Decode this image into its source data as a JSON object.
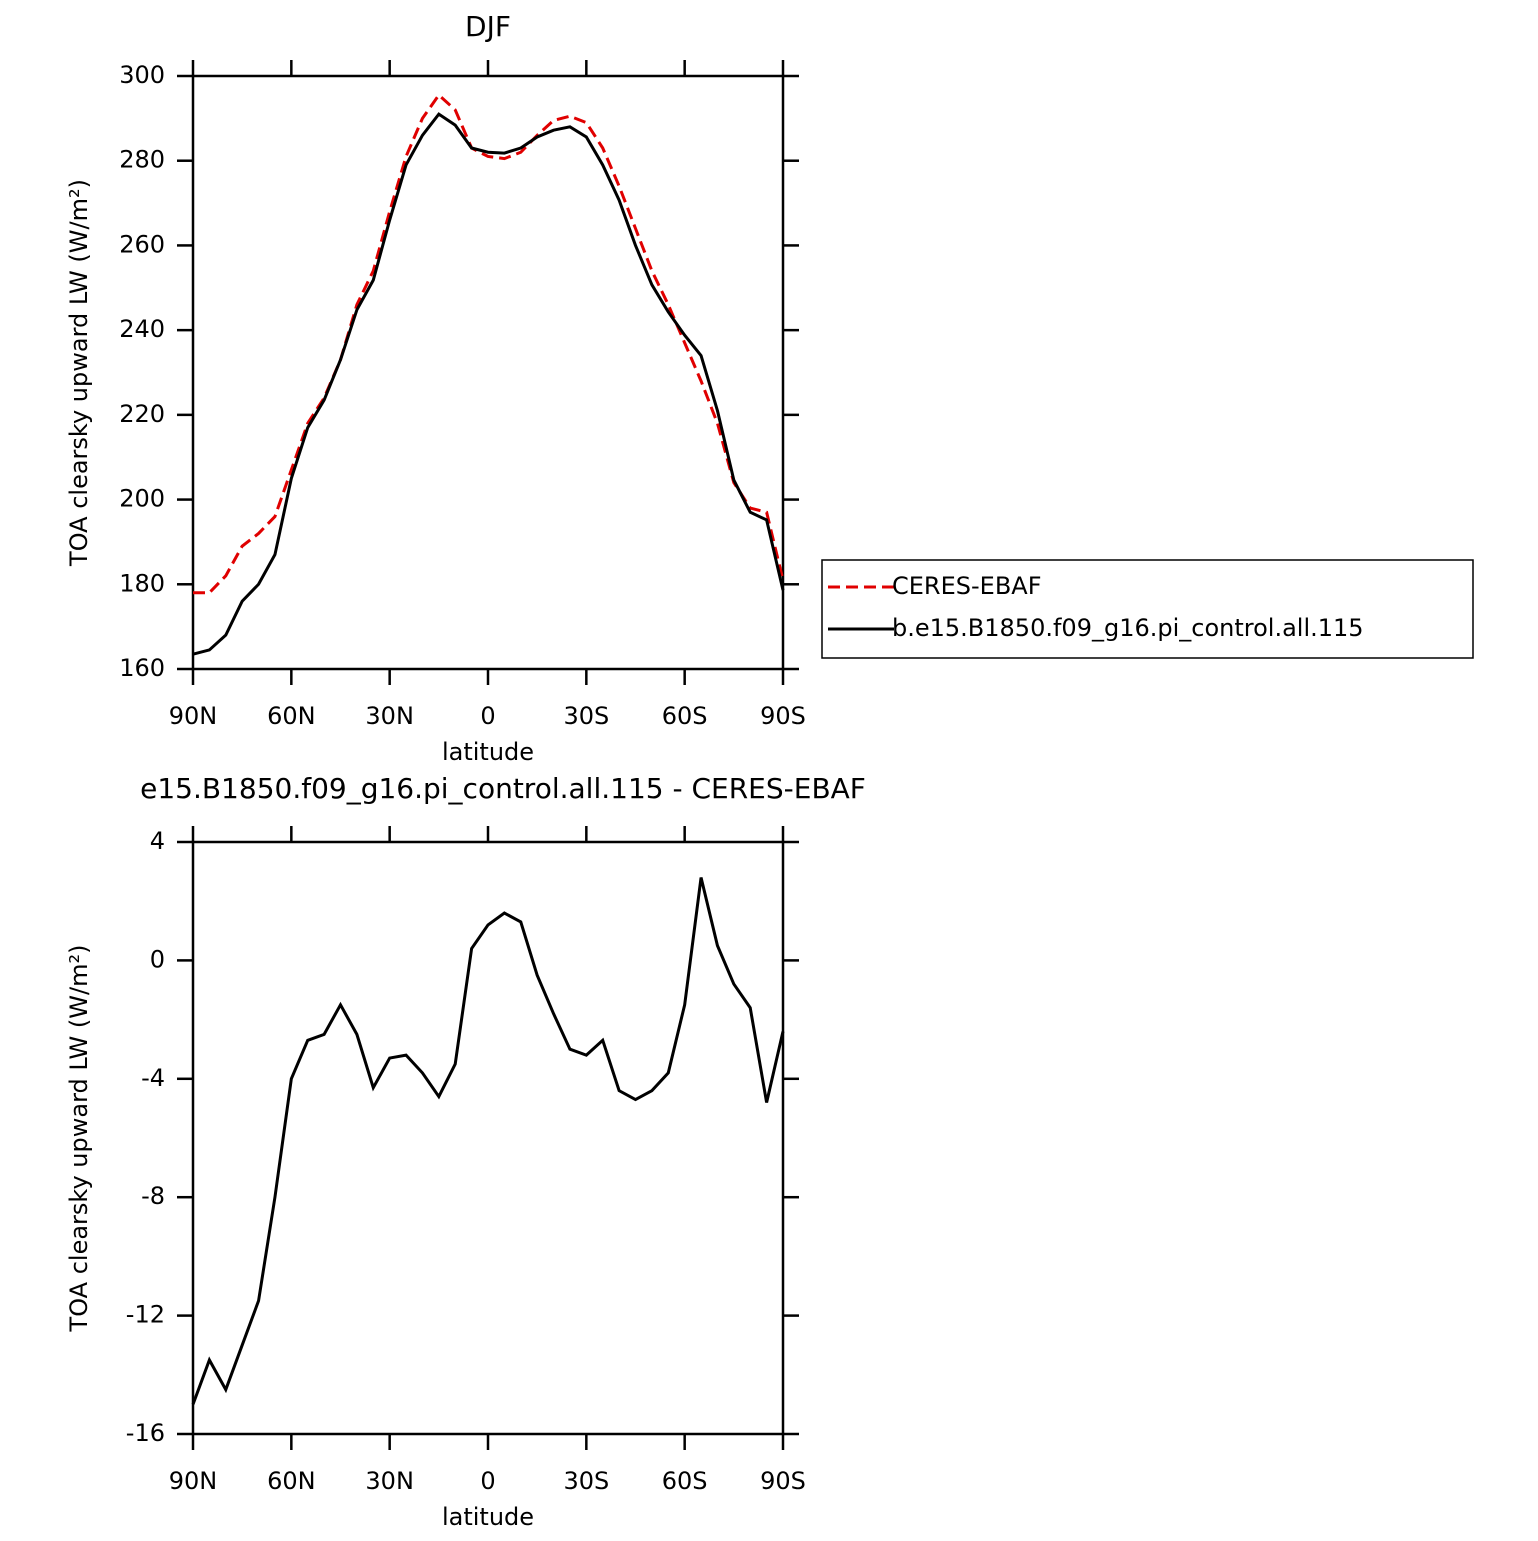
{
  "chart_data": [
    {
      "type": "line",
      "title": "DJF",
      "xlabel": "latitude",
      "ylabel": "TOA clearsky upward LW (W/m²)",
      "x": [
        90,
        85,
        80,
        75,
        70,
        65,
        60,
        55,
        50,
        45,
        40,
        35,
        30,
        25,
        20,
        15,
        10,
        5,
        0,
        -5,
        -10,
        -15,
        -20,
        -25,
        -30,
        -35,
        -40,
        -45,
        -50,
        -55,
        -60,
        -65,
        -70,
        -75,
        -80,
        -85,
        -90
      ],
      "series": [
        {
          "name": "CERES-EBAF",
          "color": "#e00000",
          "dashed": true,
          "values": [
            178,
            178,
            182,
            189,
            192,
            196,
            207,
            218,
            224,
            233,
            246,
            254,
            268,
            281,
            290,
            295.5,
            292,
            283,
            281,
            280.5,
            282,
            286,
            289.5,
            290.5,
            289,
            283,
            274,
            264,
            254,
            246,
            237,
            228,
            218,
            204,
            198,
            197,
            181
          ]
        },
        {
          "name": "b.e15.B1850.f09_g16.pi_control.all.115",
          "color": "#000000",
          "dashed": false,
          "values": [
            163.5,
            164.5,
            168,
            176,
            180,
            187,
            205,
            217,
            223.5,
            233,
            244.8,
            251.8,
            266,
            279,
            286,
            291,
            288.4,
            283,
            282,
            281.8,
            283,
            285.6,
            287.2,
            288,
            285.6,
            279,
            270.7,
            260,
            250.7,
            244.3,
            238.8,
            234,
            221,
            204.6,
            197,
            195.2,
            178.6
          ]
        }
      ],
      "xlim": [
        90,
        -90
      ],
      "xticks": [
        {
          "value": 90,
          "label": "90N"
        },
        {
          "value": 60,
          "label": "60N"
        },
        {
          "value": 30,
          "label": "30N"
        },
        0,
        {
          "value": -30,
          "label": "30S"
        },
        {
          "value": -60,
          "label": "60S"
        },
        {
          "value": -90,
          "label": "90S"
        }
      ],
      "ylim": [
        160,
        300
      ],
      "yticks": [
        160,
        180,
        200,
        220,
        240,
        260,
        280,
        300
      ],
      "legend": "right"
    },
    {
      "type": "line",
      "title": "e15.B1850.f09_g16.pi_control.all.115 - CERES-EBAF",
      "xlabel": "latitude",
      "ylabel": "TOA clearsky upward LW (W/m²)",
      "x": [
        90,
        85,
        80,
        75,
        70,
        65,
        60,
        55,
        50,
        45,
        40,
        35,
        30,
        25,
        20,
        15,
        10,
        5,
        0,
        -5,
        -10,
        -15,
        -20,
        -25,
        -30,
        -35,
        -40,
        -45,
        -50,
        -55,
        -60,
        -65,
        -70,
        -75,
        -80,
        -85,
        -90
      ],
      "values": [
        -15,
        -13.5,
        -14.5,
        -13,
        -11.5,
        -8,
        -4,
        -2.7,
        -2.5,
        -1.5,
        -2.5,
        -4.3,
        -3.3,
        -3.2,
        -3.8,
        -4.6,
        -3.5,
        0.4,
        1.2,
        1.6,
        1.3,
        -0.5,
        -1.8,
        -3,
        -3.2,
        -2.7,
        -4.4,
        -4.7,
        -4.4,
        -3.8,
        -1.5,
        2.8,
        0.5,
        -0.8,
        -1.6,
        -4.8,
        -2.4
      ],
      "color": "#000000",
      "xlim": [
        90,
        -90
      ],
      "xticks": [
        {
          "value": 90,
          "label": "90N"
        },
        {
          "value": 60,
          "label": "60N"
        },
        {
          "value": 30,
          "label": "30N"
        },
        0,
        {
          "value": -30,
          "label": "30S"
        },
        {
          "value": -60,
          "label": "60S"
        },
        {
          "value": -90,
          "label": "90S"
        }
      ],
      "ylim": [
        -16,
        4
      ],
      "yticks": [
        -16,
        -12,
        -8,
        -4,
        0,
        4
      ]
    }
  ]
}
